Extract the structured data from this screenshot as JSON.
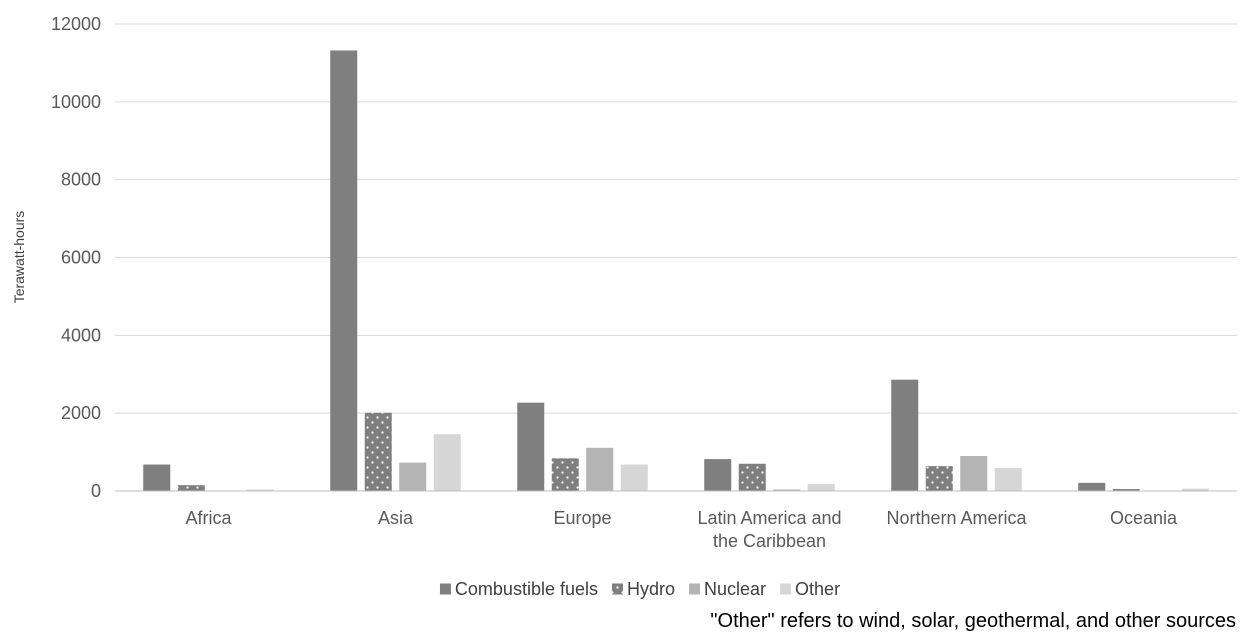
{
  "chart_data": {
    "type": "bar",
    "title": "",
    "xlabel": "",
    "ylabel": "Terawatt-hours",
    "ylim": [
      0,
      12000
    ],
    "yticks": [
      0,
      2000,
      4000,
      6000,
      8000,
      10000,
      12000
    ],
    "grid": true,
    "legend_position": "bottom",
    "categories": [
      [
        "Africa"
      ],
      [
        "Asia"
      ],
      [
        "Europe"
      ],
      [
        "Latin America and",
        "the Caribbean"
      ],
      [
        "Northern America"
      ],
      [
        "Oceania"
      ]
    ],
    "series": [
      {
        "name": "Combustible fuels",
        "color": "#7f7f7f",
        "pattern": "solid",
        "values": [
          680,
          11320,
          2270,
          820,
          2860,
          210
        ]
      },
      {
        "name": "Hydro",
        "color": "#7f7f7f",
        "pattern": "dotted",
        "values": [
          150,
          2010,
          840,
          700,
          640,
          50
        ]
      },
      {
        "name": "Nuclear",
        "color": "#b4b4b4",
        "pattern": "solid",
        "values": [
          10,
          730,
          1110,
          40,
          900,
          0
        ]
      },
      {
        "name": "Other",
        "color": "#d6d6d6",
        "pattern": "solid",
        "values": [
          40,
          1460,
          680,
          180,
          590,
          60
        ]
      }
    ],
    "note": "\"Other\" refers to wind, solar, geothermal, and other sources"
  }
}
